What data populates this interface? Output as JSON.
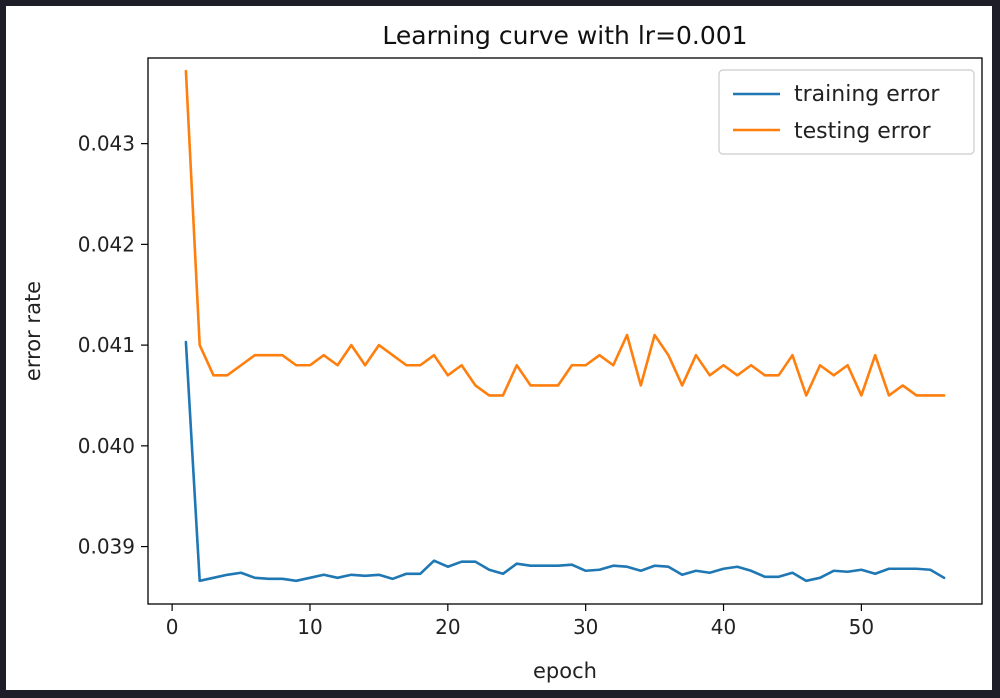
{
  "chart_data": {
    "type": "line",
    "title": "Learning curve with lr=0.001",
    "xlabel": "epoch",
    "ylabel": "error rate",
    "xlim": [
      -1.75,
      58.75
    ],
    "ylim": [
      0.03843,
      0.04385
    ],
    "xticks": [
      0,
      10,
      20,
      30,
      40,
      50
    ],
    "yticks": [
      0.039,
      0.04,
      0.041,
      0.042,
      0.043
    ],
    "ytick_labels": [
      "0.039",
      "0.040",
      "0.041",
      "0.042",
      "0.043"
    ],
    "grid": false,
    "legend_position": "top-right",
    "x": [
      1,
      2,
      3,
      4,
      5,
      6,
      7,
      8,
      9,
      10,
      11,
      12,
      13,
      14,
      15,
      16,
      17,
      18,
      19,
      20,
      21,
      22,
      23,
      24,
      25,
      26,
      27,
      28,
      29,
      30,
      31,
      32,
      33,
      34,
      35,
      36,
      37,
      38,
      39,
      40,
      41,
      42,
      43,
      44,
      45,
      46,
      47,
      48,
      49,
      50,
      51,
      52,
      53,
      54,
      55,
      56
    ],
    "series": [
      {
        "name": "training error",
        "color": "#1f77b4",
        "values": [
          0.04103,
          0.03866,
          0.03869,
          0.03872,
          0.03874,
          0.03869,
          0.03868,
          0.03868,
          0.03866,
          0.03869,
          0.03872,
          0.03869,
          0.03872,
          0.03871,
          0.03872,
          0.03868,
          0.03873,
          0.03873,
          0.03886,
          0.0388,
          0.03885,
          0.03885,
          0.03877,
          0.03873,
          0.03883,
          0.03881,
          0.03881,
          0.03881,
          0.03882,
          0.03876,
          0.03877,
          0.03881,
          0.0388,
          0.03876,
          0.03881,
          0.0388,
          0.03872,
          0.03876,
          0.03874,
          0.03878,
          0.0388,
          0.03876,
          0.0387,
          0.0387,
          0.03874,
          0.03866,
          0.03869,
          0.03876,
          0.03875,
          0.03877,
          0.03873,
          0.03878,
          0.03878,
          0.03878,
          0.03877,
          0.03869
        ]
      },
      {
        "name": "testing error",
        "color": "#ff7f0e",
        "values": [
          0.04372,
          0.041,
          0.0407,
          0.0407,
          0.0408,
          0.0409,
          0.0409,
          0.0409,
          0.0408,
          0.0408,
          0.0409,
          0.0408,
          0.041,
          0.0408,
          0.041,
          0.0409,
          0.0408,
          0.0408,
          0.0409,
          0.0407,
          0.0408,
          0.0406,
          0.0405,
          0.0405,
          0.0408,
          0.0406,
          0.0406,
          0.0406,
          0.0408,
          0.0408,
          0.0409,
          0.0408,
          0.0411,
          0.0406,
          0.0411,
          0.0409,
          0.0406,
          0.0409,
          0.0407,
          0.0408,
          0.0407,
          0.0408,
          0.0407,
          0.0407,
          0.0409,
          0.0405,
          0.0408,
          0.0407,
          0.0408,
          0.0405,
          0.0409,
          0.0405,
          0.0406,
          0.0405,
          0.0405,
          0.0405
        ]
      }
    ]
  }
}
